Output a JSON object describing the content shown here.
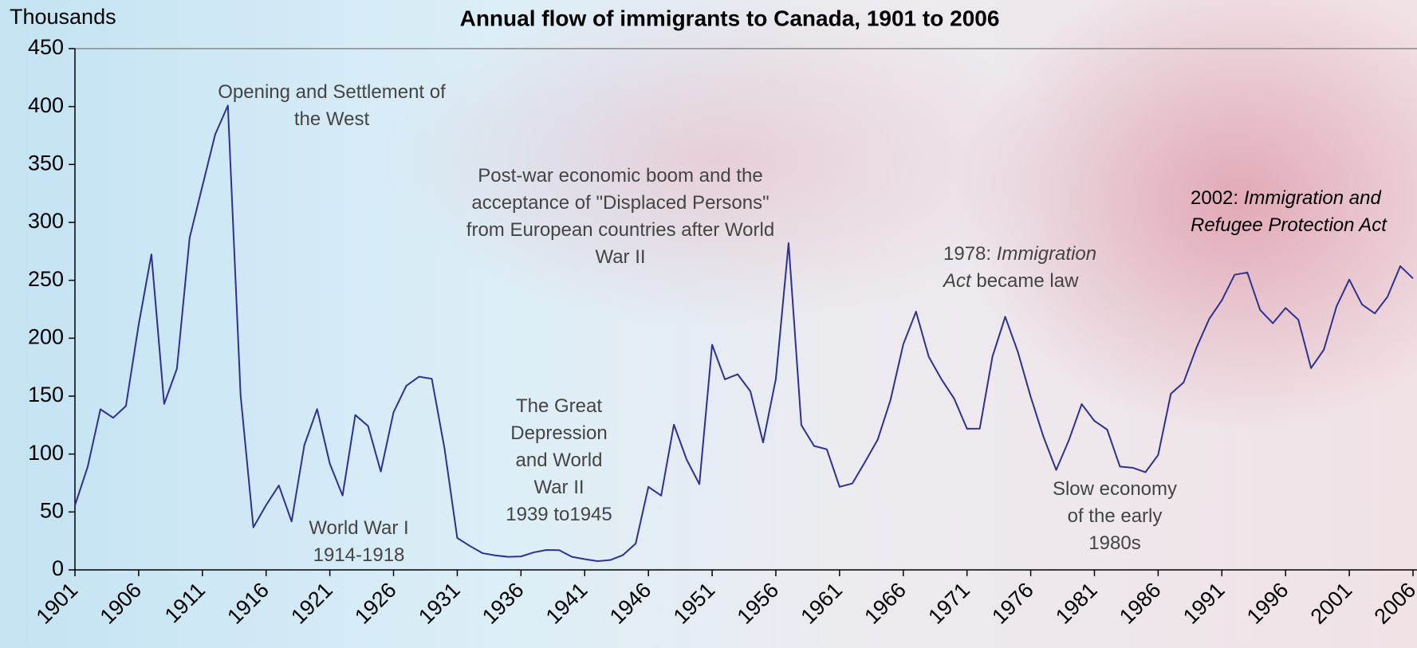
{
  "chart_data": {
    "type": "line",
    "title": "Annual flow of immigrants to Canada, 1901 to 2006",
    "y_label": "Thousands",
    "x": [
      1901,
      1902,
      1903,
      1904,
      1905,
      1906,
      1907,
      1908,
      1909,
      1910,
      1911,
      1912,
      1913,
      1914,
      1915,
      1916,
      1917,
      1918,
      1919,
      1920,
      1921,
      1922,
      1923,
      1924,
      1925,
      1926,
      1927,
      1928,
      1929,
      1930,
      1931,
      1932,
      1933,
      1934,
      1935,
      1936,
      1937,
      1938,
      1939,
      1940,
      1941,
      1942,
      1943,
      1944,
      1945,
      1946,
      1947,
      1948,
      1949,
      1950,
      1951,
      1952,
      1953,
      1954,
      1955,
      1956,
      1957,
      1958,
      1959,
      1960,
      1961,
      1962,
      1963,
      1964,
      1965,
      1966,
      1967,
      1968,
      1969,
      1970,
      1971,
      1972,
      1973,
      1974,
      1975,
      1976,
      1977,
      1978,
      1979,
      1980,
      1981,
      1982,
      1983,
      1984,
      1985,
      1986,
      1987,
      1988,
      1989,
      1990,
      1991,
      1992,
      1993,
      1994,
      1995,
      1996,
      1997,
      1998,
      1999,
      2000,
      2001,
      2002,
      2003,
      2004,
      2005,
      2006
    ],
    "series": [
      {
        "color": "#2e3192",
        "values": [
          55.7,
          89.1,
          138.7,
          131.3,
          141.5,
          211.7,
          272.4,
          143.3,
          173.7,
          286.8,
          331.3,
          375.8,
          400.9,
          150.5,
          36.7,
          55.9,
          72.9,
          41.8,
          107.7,
          138.8,
          91.7,
          64.2,
          133.7,
          124.2,
          84.9,
          136.0,
          158.9,
          166.8,
          165.0,
          104.8,
          27.5,
          20.6,
          14.4,
          12.5,
          11.3,
          11.6,
          15.1,
          17.2,
          17.0,
          11.3,
          9.3,
          7.6,
          8.5,
          12.8,
          22.7,
          71.7,
          64.1,
          125.4,
          95.2,
          74.0,
          194.4,
          164.5,
          168.9,
          154.2,
          110.0,
          164.9,
          282.2,
          125.0,
          107.0,
          104.1,
          71.7,
          74.6,
          93.2,
          112.6,
          146.8,
          194.7,
          222.9,
          184.0,
          164.5,
          147.7,
          121.9,
          122.0,
          184.2,
          218.5,
          187.9,
          149.4,
          114.9,
          86.3,
          112.1,
          143.1,
          128.6,
          121.1,
          89.2,
          88.2,
          84.3,
          99.2,
          152.1,
          161.9,
          191.6,
          216.5,
          232.8,
          254.8,
          256.7,
          224.4,
          212.9,
          226.1,
          216.0,
          174.2,
          190.0,
          227.5,
          250.6,
          229.1,
          221.4,
          235.8,
          262.2,
          251.6
        ]
      }
    ],
    "xlim": [
      1901,
      2006
    ],
    "xticks": [
      1901,
      1906,
      1911,
      1916,
      1921,
      1926,
      1931,
      1936,
      1941,
      1946,
      1951,
      1956,
      1961,
      1966,
      1971,
      1976,
      1981,
      1986,
      1991,
      1996,
      2001,
      2006
    ],
    "ylim": [
      0,
      450
    ],
    "yticks": [
      0,
      50,
      100,
      150,
      200,
      250,
      300,
      350,
      400,
      450
    ],
    "annotations": [
      {
        "lines": [
          [
            {
              "text": "Opening and Settlement of"
            }
          ],
          [
            {
              "text": "the West"
            }
          ]
        ]
      },
      {
        "lines": [
          [
            {
              "text": "World War I"
            }
          ],
          [
            {
              "text": "1914-1918"
            }
          ]
        ]
      },
      {
        "lines": [
          [
            {
              "text": "The Great"
            }
          ],
          [
            {
              "text": "Depression"
            }
          ],
          [
            {
              "text": "and World"
            }
          ],
          [
            {
              "text": "War II"
            }
          ],
          [
            {
              "text": "1939 to1945"
            }
          ]
        ]
      },
      {
        "lines": [
          [
            {
              "text": "Post-war economic boom and the"
            }
          ],
          [
            {
              "text": "acceptance of \"Displaced Persons\""
            }
          ],
          [
            {
              "text": "from European countries after World"
            }
          ],
          [
            {
              "text": "War II"
            }
          ]
        ]
      },
      {
        "lines": [
          [
            {
              "text": "1978: "
            },
            {
              "text": "Immigration",
              "style": "italic"
            }
          ],
          [
            {
              "text": "Act",
              "style": "italic"
            },
            {
              "text": " became law"
            }
          ]
        ]
      },
      {
        "lines": [
          [
            {
              "text": "Slow economy"
            }
          ],
          [
            {
              "text": "of the early"
            }
          ],
          [
            {
              "text": "1980s"
            }
          ]
        ]
      },
      {
        "lines": [
          [
            {
              "text": "2002: "
            },
            {
              "text": "Immigration and",
              "style": "italic"
            }
          ],
          [
            {
              "text": "Refugee Protection Act",
              "style": "italic"
            }
          ]
        ]
      }
    ]
  }
}
